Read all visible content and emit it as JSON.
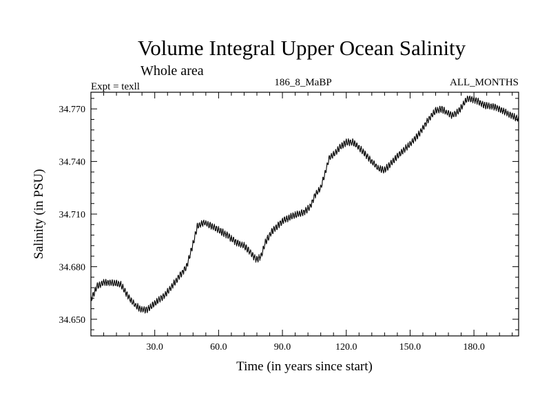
{
  "chart_data": {
    "type": "line",
    "title": "Volume Integral Upper Ocean Salinity",
    "subtitle": "Whole area",
    "header_left": "Expt = texll",
    "header_center": "186_8_MaBP",
    "header_right": "ALL_MONTHS",
    "xlabel": "Time (in years since start)",
    "ylabel": "Salinity (in PSU)",
    "xlim": [
      0,
      201
    ],
    "ylim": [
      34.6405,
      34.7795
    ],
    "xticks": [
      30.0,
      60.0,
      90.0,
      120.0,
      150.0,
      180.0
    ],
    "xtick_labels": [
      "30.0",
      "60.0",
      "90.0",
      "120.0",
      "150.0",
      "180.0"
    ],
    "yticks": [
      34.65,
      34.68,
      34.71,
      34.74,
      34.77
    ],
    "ytick_labels": [
      "34.650",
      "34.680",
      "34.710",
      "34.740",
      "34.770"
    ],
    "series": [
      {
        "name": "Salinity",
        "color": "#000000",
        "seasonal_amplitude": 0.0015,
        "x": [
          0,
          3,
          6,
          10,
          14,
          17,
          20,
          23,
          26,
          30,
          35,
          40,
          45,
          48,
          50,
          53,
          57,
          60,
          64,
          68,
          72,
          75,
          77,
          78,
          80,
          82,
          85,
          90,
          95,
          100,
          103,
          105,
          108,
          110,
          112,
          114,
          117,
          120,
          123,
          126,
          129,
          132,
          135,
          138,
          141,
          145,
          150,
          155,
          158,
          162,
          165,
          167,
          170,
          173,
          177,
          181,
          185,
          190,
          195,
          198,
          201
        ],
        "values": [
          34.661,
          34.669,
          34.671,
          34.671,
          34.67,
          34.664,
          34.659,
          34.656,
          34.655,
          34.659,
          34.664,
          34.672,
          34.68,
          34.693,
          34.703,
          34.705,
          34.703,
          34.701,
          34.698,
          34.694,
          34.692,
          34.688,
          34.685,
          34.684,
          34.686,
          34.694,
          34.7,
          34.706,
          34.709,
          34.711,
          34.714,
          34.72,
          34.725,
          34.733,
          34.742,
          34.744,
          34.748,
          34.751,
          34.751,
          34.748,
          34.744,
          34.74,
          34.736,
          34.735,
          34.739,
          34.744,
          34.75,
          34.757,
          34.763,
          34.769,
          34.77,
          34.768,
          34.766,
          34.769,
          34.776,
          34.775,
          34.772,
          34.771,
          34.768,
          34.766,
          34.764
        ]
      }
    ]
  }
}
